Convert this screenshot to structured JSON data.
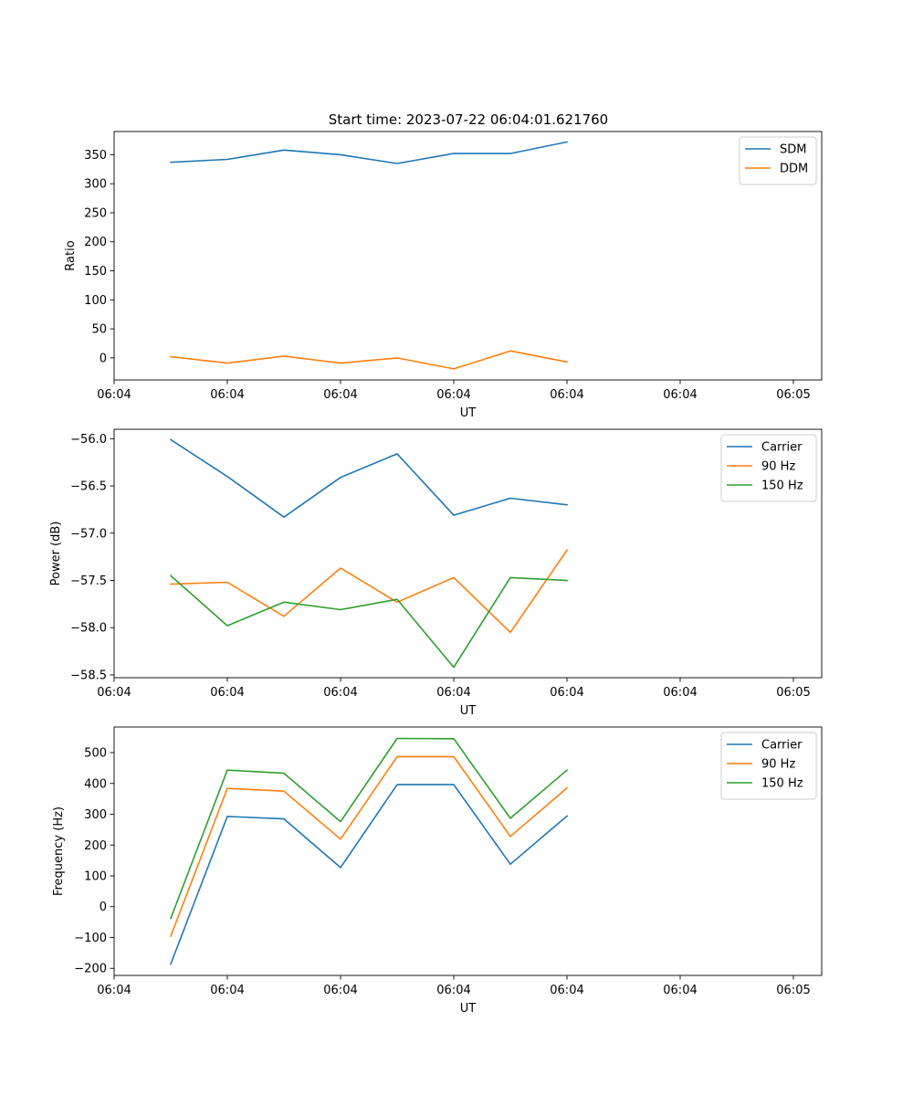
{
  "figure_title": "Start time: 2023-07-22 06:04:01.621760",
  "chart_data": [
    {
      "type": "line",
      "title": "Start time: 2023-07-22 06:04:01.621760",
      "xlabel": "UT",
      "ylabel": "Ratio",
      "x_tick_labels": [
        "06:04",
        "06:04",
        "06:04",
        "06:04",
        "06:04",
        "06:04",
        "06:05"
      ],
      "x": [
        1,
        2,
        3,
        4,
        5,
        6,
        7,
        8
      ],
      "xlim": [
        0,
        12.5
      ],
      "x_ticks": [
        0,
        2,
        4,
        6,
        8,
        10,
        12
      ],
      "ylim": [
        -38,
        390
      ],
      "y_ticks": [
        0,
        50,
        100,
        150,
        200,
        250,
        300,
        350
      ],
      "y_tick_labels": [
        "0",
        "50",
        "100",
        "150",
        "200",
        "250",
        "300",
        "350"
      ],
      "grid": false,
      "legend_position": "top-right",
      "series": [
        {
          "name": "SDM",
          "color": "#1f77b4",
          "values": [
            337,
            342,
            358,
            350,
            335,
            352,
            352,
            372
          ]
        },
        {
          "name": "DDM",
          "color": "#ff7f0e",
          "values": [
            2,
            -9,
            3,
            -9,
            0,
            -19,
            12,
            -7
          ]
        }
      ]
    },
    {
      "type": "line",
      "title": "",
      "xlabel": "UT",
      "ylabel": "Power (dB)",
      "x_tick_labels": [
        "06:04",
        "06:04",
        "06:04",
        "06:04",
        "06:04",
        "06:04",
        "06:05"
      ],
      "x": [
        1,
        2,
        3,
        4,
        5,
        6,
        7,
        8
      ],
      "xlim": [
        0,
        12.5
      ],
      "x_ticks": [
        0,
        2,
        4,
        6,
        8,
        10,
        12
      ],
      "ylim": [
        -58.53,
        -55.9
      ],
      "y_ticks": [
        -58.5,
        -58.0,
        -57.5,
        -57.0,
        -56.5,
        -56.0
      ],
      "y_tick_labels": [
        "−58.5",
        "−58.0",
        "−57.5",
        "−57.0",
        "−56.5",
        "−56.0"
      ],
      "grid": false,
      "legend_position": "top-right",
      "series": [
        {
          "name": "Carrier",
          "color": "#1f77b4",
          "values": [
            -56.01,
            -56.4,
            -56.83,
            -56.41,
            -56.16,
            -56.81,
            -56.63,
            -56.7
          ]
        },
        {
          "name": "90 Hz",
          "color": "#ff7f0e",
          "values": [
            -57.54,
            -57.52,
            -57.88,
            -57.37,
            -57.73,
            -57.47,
            -58.05,
            -57.18
          ]
        },
        {
          "name": "150 Hz",
          "color": "#2ca02c",
          "values": [
            -57.45,
            -57.98,
            -57.73,
            -57.81,
            -57.7,
            -58.42,
            -57.47,
            -57.5
          ]
        }
      ]
    },
    {
      "type": "line",
      "title": "",
      "xlabel": "UT",
      "ylabel": "Frequency (Hz)",
      "x_tick_labels": [
        "06:04",
        "06:04",
        "06:04",
        "06:04",
        "06:04",
        "06:04",
        "06:05"
      ],
      "x": [
        1,
        2,
        3,
        4,
        5,
        6,
        7,
        8
      ],
      "xlim": [
        0,
        12.5
      ],
      "x_ticks": [
        0,
        2,
        4,
        6,
        8,
        10,
        12
      ],
      "ylim": [
        -223,
        583
      ],
      "y_ticks": [
        -200,
        -100,
        0,
        100,
        200,
        300,
        400,
        500
      ],
      "y_tick_labels": [
        "−200",
        "−100",
        "0",
        "100",
        "200",
        "300",
        "400",
        "500"
      ],
      "grid": false,
      "legend_position": "top-right",
      "series": [
        {
          "name": "Carrier",
          "color": "#1f77b4",
          "values": [
            -186,
            293,
            285,
            127,
            396,
            396,
            138,
            294
          ]
        },
        {
          "name": "90 Hz",
          "color": "#ff7f0e",
          "values": [
            -96,
            384,
            375,
            219,
            487,
            487,
            228,
            385
          ]
        },
        {
          "name": "150 Hz",
          "color": "#2ca02c",
          "values": [
            -38,
            443,
            433,
            276,
            546,
            545,
            287,
            443
          ]
        }
      ]
    }
  ]
}
